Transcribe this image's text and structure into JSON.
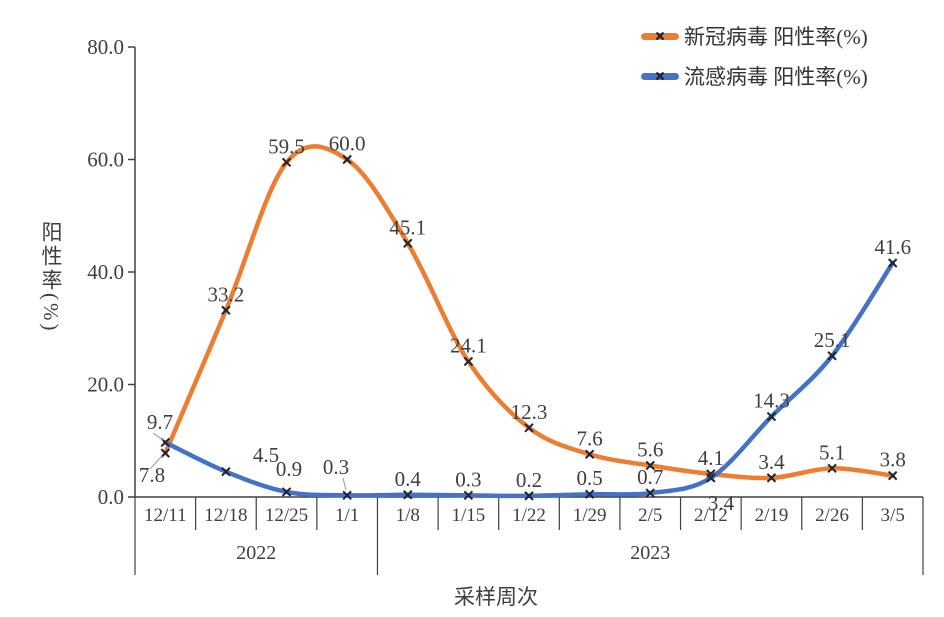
{
  "page": {
    "background": "#ffffff"
  },
  "chart_data": {
    "type": "line",
    "title": "",
    "xlabel": "采样周次",
    "ylabel": "阳性率(%)",
    "ylim": [
      0,
      80
    ],
    "yticks": [
      0,
      20,
      40,
      60,
      80
    ],
    "grid": false,
    "smooth": true,
    "marker": "x",
    "marker_color": "#1f2430",
    "axis_color": "#404040",
    "label_color": "#3f3f3f",
    "leader_color": "#a6a6a6",
    "legend_position": "top-right",
    "categories": [
      "12/11",
      "12/18",
      "12/25",
      "1/1",
      "1/8",
      "1/15",
      "1/22",
      "1/29",
      "2/5",
      "2/12",
      "2/19",
      "2/26",
      "3/5"
    ],
    "year_groups": [
      {
        "label": "2022",
        "span": [
          0,
          3
        ]
      },
      {
        "label": "2023",
        "span": [
          4,
          12
        ]
      }
    ],
    "series": [
      {
        "id": "covid",
        "name": "新冠病毒 阳性率(%)",
        "color": "#ED7D31",
        "values": [
          7.8,
          33.2,
          59.5,
          60.0,
          45.1,
          24.1,
          12.3,
          7.6,
          5.6,
          4.1,
          3.4,
          5.1,
          3.8
        ]
      },
      {
        "id": "flu",
        "name": "流感病毒 阳性率(%)",
        "color": "#4472C4",
        "values": [
          9.7,
          4.5,
          0.9,
          0.3,
          0.4,
          0.3,
          0.2,
          0.5,
          0.7,
          3.4,
          14.3,
          25.1,
          41.6
        ]
      }
    ]
  }
}
